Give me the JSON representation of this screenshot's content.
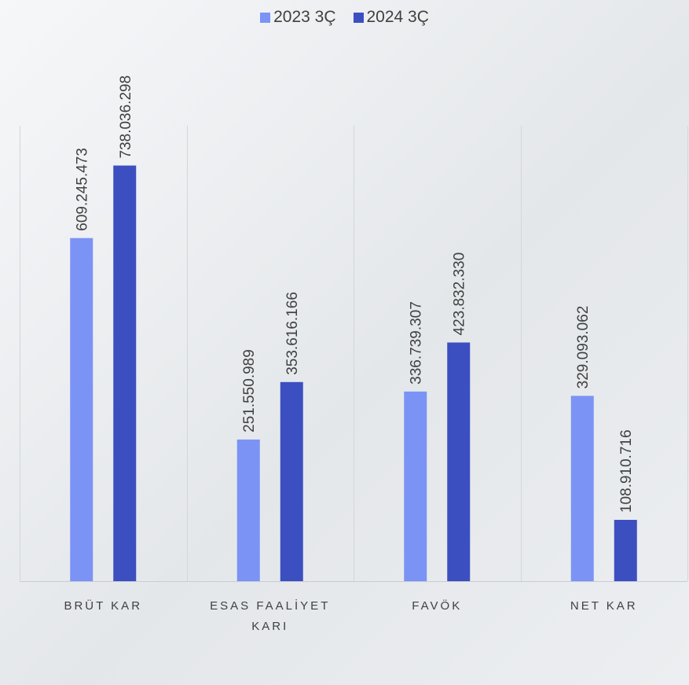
{
  "chart_data": {
    "type": "bar",
    "categories": [
      "BRÜT KAR",
      "ESAS FAALİYET KARI",
      "FAVÖK",
      "NET KAR"
    ],
    "category_lines": [
      [
        "BRÜT KAR"
      ],
      [
        "ESAS FAALİYET",
        "KARI"
      ],
      [
        "FAVÖK"
      ],
      [
        "NET KAR"
      ]
    ],
    "series": [
      {
        "name": "2023 3Ç",
        "color": "#7b93f5",
        "values": [
          609245473,
          251550989,
          336739307,
          329093062
        ],
        "labels": [
          "609.245.473",
          "251.550.989",
          "336.739.307",
          "329.093.062"
        ]
      },
      {
        "name": "2024 3Ç",
        "color": "#3c4fc0",
        "values": [
          738036298,
          353616166,
          423832330,
          108910716
        ],
        "labels": [
          "738.036.298",
          "353.616.166",
          "423.832.330",
          "108.910.716"
        ]
      }
    ],
    "title": "",
    "xlabel": "",
    "ylabel": "",
    "ylim": [
      0,
      800000000
    ],
    "grid": "vertical category separators",
    "legend_position": "top-center",
    "data_labels": "rotated vertical above bars"
  }
}
